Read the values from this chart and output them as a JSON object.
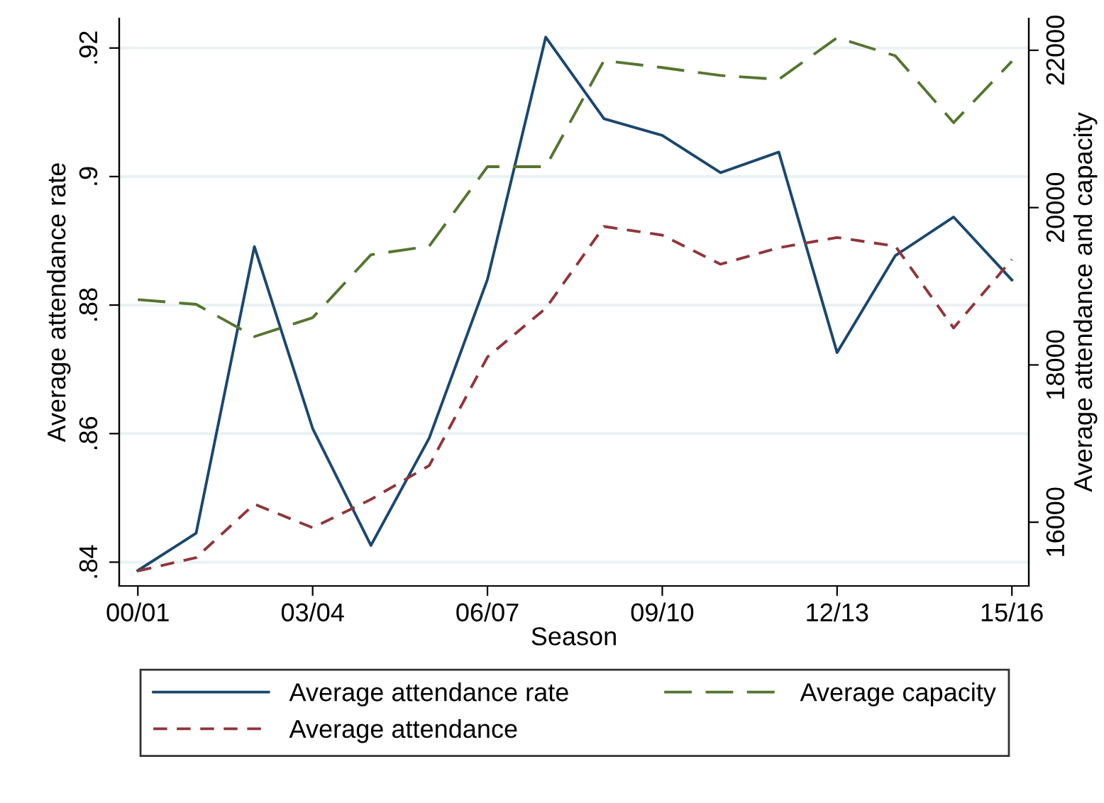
{
  "chart_data": {
    "type": "line",
    "xlabel": "Season",
    "ylabel": "Average attendance rate",
    "y2label": "Average attendance and capacity",
    "categories": [
      "00/01",
      null,
      null,
      "03/04",
      null,
      null,
      "06/07",
      null,
      null,
      "09/10",
      null,
      null,
      "12/13",
      null,
      null,
      "15/16"
    ],
    "series": [
      {
        "name": "Average attendance rate",
        "color": "#1a476f",
        "line_style": "solid",
        "values": [
          0.8387,
          0.8445,
          0.8891,
          0.8608,
          0.8426,
          0.8593,
          0.884,
          0.9217,
          0.909,
          0.9064,
          0.9006,
          0.9038,
          0.8726,
          0.8877,
          0.8937,
          0.8839
        ]
      },
      {
        "name": "Average attendance",
        "color": "#90353b",
        "line_style": "dashed",
        "axis": "y2",
        "values": [
          15380,
          15550,
          16230,
          15930,
          16290,
          16720,
          18100,
          18720,
          19760,
          19650,
          19280,
          19490,
          19620,
          19510,
          18470,
          19340
        ]
      },
      {
        "name": "Average capacity",
        "color": "#55752f",
        "line_style": "longdash",
        "axis": "y2",
        "values": [
          18830,
          18770,
          18360,
          18600,
          19400,
          19510,
          20520,
          20520,
          21870,
          21780,
          21680,
          21630,
          22160,
          21930,
          21080,
          21860
        ]
      }
    ],
    "ylim": [
      0.8363,
      0.9246
    ],
    "yticks": [
      {
        "value": 0.84,
        "label": ".84"
      },
      {
        "value": 0.86,
        "label": ".86"
      },
      {
        "value": 0.88,
        "label": ".88"
      },
      {
        "value": 0.9,
        "label": ".9"
      },
      {
        "value": 0.92,
        "label": ".92"
      }
    ],
    "y2lim": [
      15190,
      22405
    ],
    "y2ticks": [
      16000,
      18000,
      20000,
      22000
    ],
    "grid": "y",
    "legend": "bottom"
  }
}
